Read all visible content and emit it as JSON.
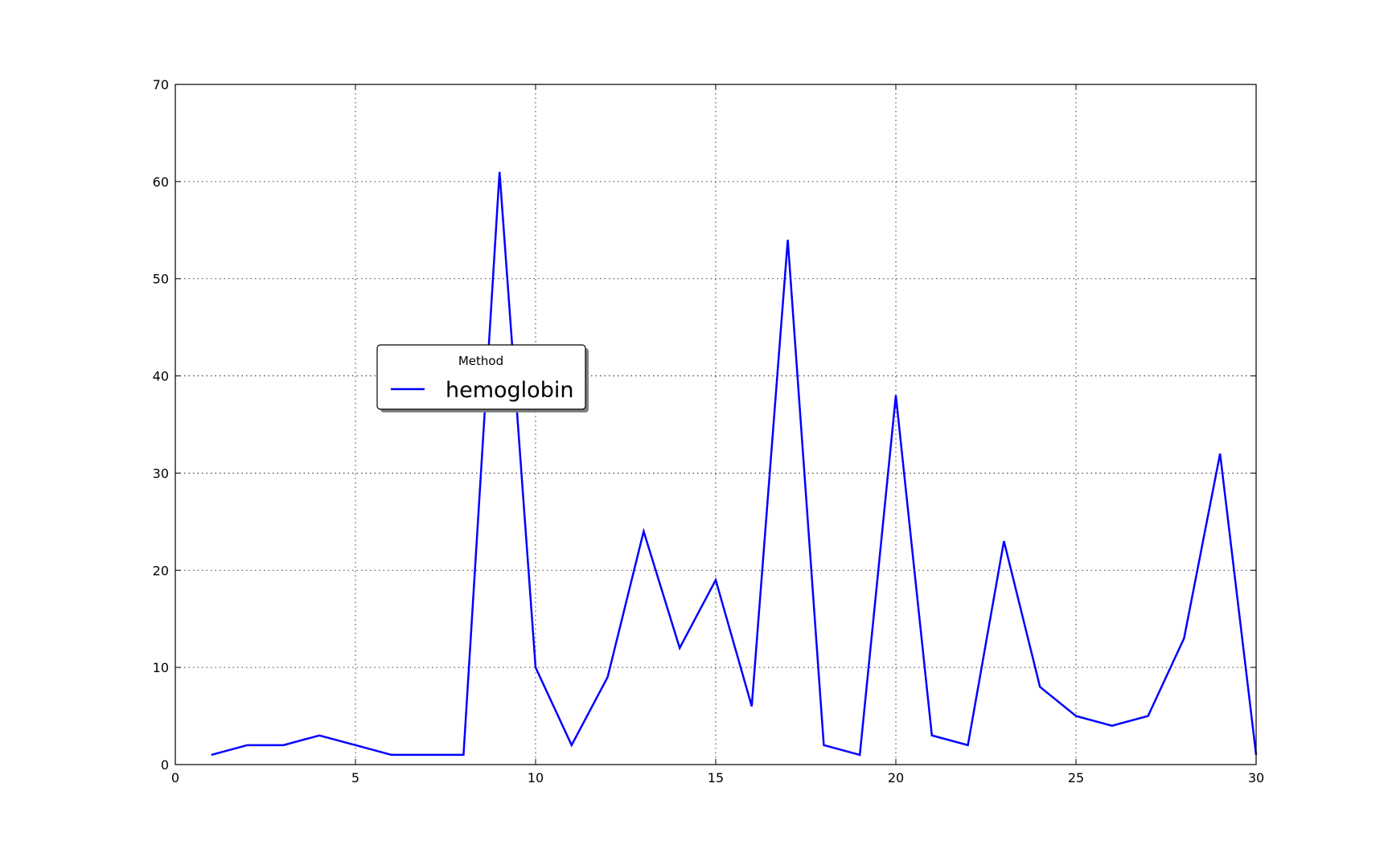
{
  "chart_data": {
    "type": "line",
    "title": "",
    "xlabel": "",
    "ylabel": "",
    "xlim": [
      0,
      30
    ],
    "ylim": [
      0,
      70
    ],
    "xticks": [
      0,
      5,
      10,
      15,
      20,
      25,
      30
    ],
    "yticks": [
      0,
      10,
      20,
      30,
      40,
      50,
      60,
      70
    ],
    "grid": true,
    "legend": {
      "title": "Method",
      "placement": "center-left",
      "entries": [
        "hemoglobin"
      ]
    },
    "series": [
      {
        "name": "hemoglobin",
        "color": "#0000ff",
        "x": [
          1,
          2,
          3,
          4,
          5,
          6,
          7,
          8,
          9,
          10,
          11,
          12,
          13,
          14,
          15,
          16,
          17,
          18,
          19,
          20,
          21,
          22,
          23,
          24,
          25,
          26,
          27,
          28,
          29,
          30
        ],
        "values": [
          1,
          2,
          2,
          3,
          2,
          1,
          1,
          1,
          61,
          10,
          2,
          9,
          24,
          12,
          19,
          6,
          54,
          2,
          1,
          38,
          3,
          2,
          23,
          8,
          5,
          4,
          5,
          13,
          32,
          1
        ]
      }
    ]
  }
}
